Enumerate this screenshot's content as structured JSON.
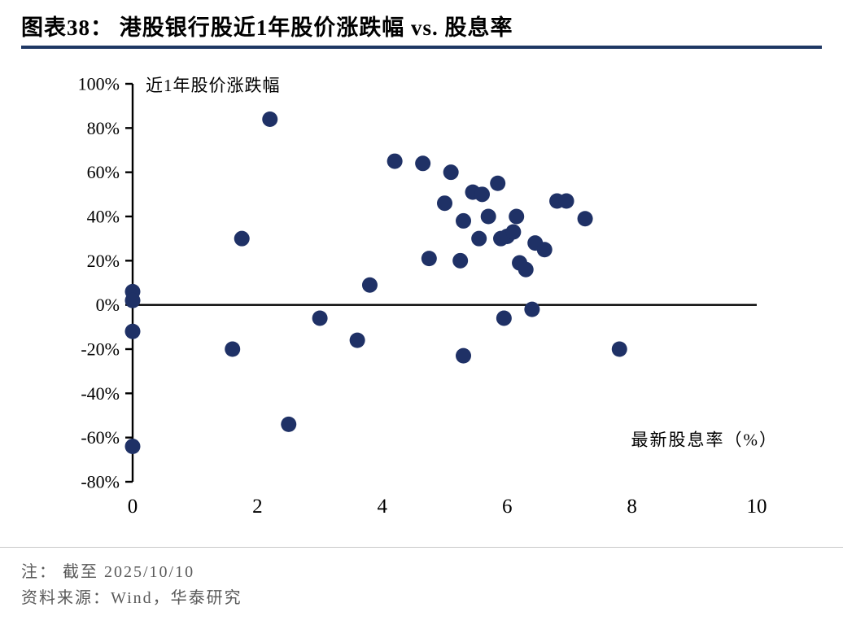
{
  "header": {
    "title_prefix": "图表38：",
    "title_text": "港股银行股近1年股价涨跌幅 vs. 股息率",
    "accent_color": "#1F3864"
  },
  "chart_data": {
    "type": "scatter",
    "title": "港股银行股近1年股价涨跌幅 vs. 股息率",
    "xlabel": "最新股息率（%）",
    "ylabel": "近1年股价涨跌幅",
    "xlim": [
      0,
      10
    ],
    "ylim": [
      -80,
      100
    ],
    "grid": false,
    "legend": "none",
    "marker_color": "#1F3166",
    "axis_color": "#000000",
    "x_ticks": [
      0,
      2,
      4,
      6,
      8,
      10
    ],
    "x_tick_labels": [
      "0",
      "2",
      "4",
      "6",
      "8",
      "10"
    ],
    "y_ticks": [
      100,
      80,
      60,
      40,
      20,
      0,
      -20,
      -40,
      -60,
      -80
    ],
    "y_tick_labels": [
      "100%",
      "80%",
      "60%",
      "40%",
      "20%",
      "0%",
      "-20%",
      "-40%",
      "-60%",
      "-80%"
    ],
    "points": [
      [
        0,
        6
      ],
      [
        0,
        2
      ],
      [
        0,
        -12
      ],
      [
        0,
        -64
      ],
      [
        1.6,
        -20
      ],
      [
        1.75,
        30
      ],
      [
        2.2,
        84
      ],
      [
        2.5,
        -54
      ],
      [
        3.0,
        -6
      ],
      [
        3.6,
        -16
      ],
      [
        3.8,
        9
      ],
      [
        4.2,
        65
      ],
      [
        4.65,
        64
      ],
      [
        4.75,
        21
      ],
      [
        5.0,
        46
      ],
      [
        5.1,
        60
      ],
      [
        5.25,
        20
      ],
      [
        5.3,
        38
      ],
      [
        5.3,
        -23
      ],
      [
        5.45,
        51
      ],
      [
        5.55,
        30
      ],
      [
        5.6,
        50
      ],
      [
        5.7,
        40
      ],
      [
        5.85,
        55
      ],
      [
        5.9,
        30
      ],
      [
        5.95,
        -6
      ],
      [
        6.0,
        31
      ],
      [
        6.1,
        33
      ],
      [
        6.15,
        40
      ],
      [
        6.2,
        19
      ],
      [
        6.3,
        16
      ],
      [
        6.4,
        -2
      ],
      [
        6.45,
        28
      ],
      [
        6.6,
        25
      ],
      [
        6.8,
        47
      ],
      [
        6.95,
        47
      ],
      [
        7.25,
        39
      ],
      [
        7.8,
        -20
      ]
    ]
  },
  "footer": {
    "note": "注：  截至 2025/10/10",
    "source": "资料来源：Wind，华泰研究"
  }
}
